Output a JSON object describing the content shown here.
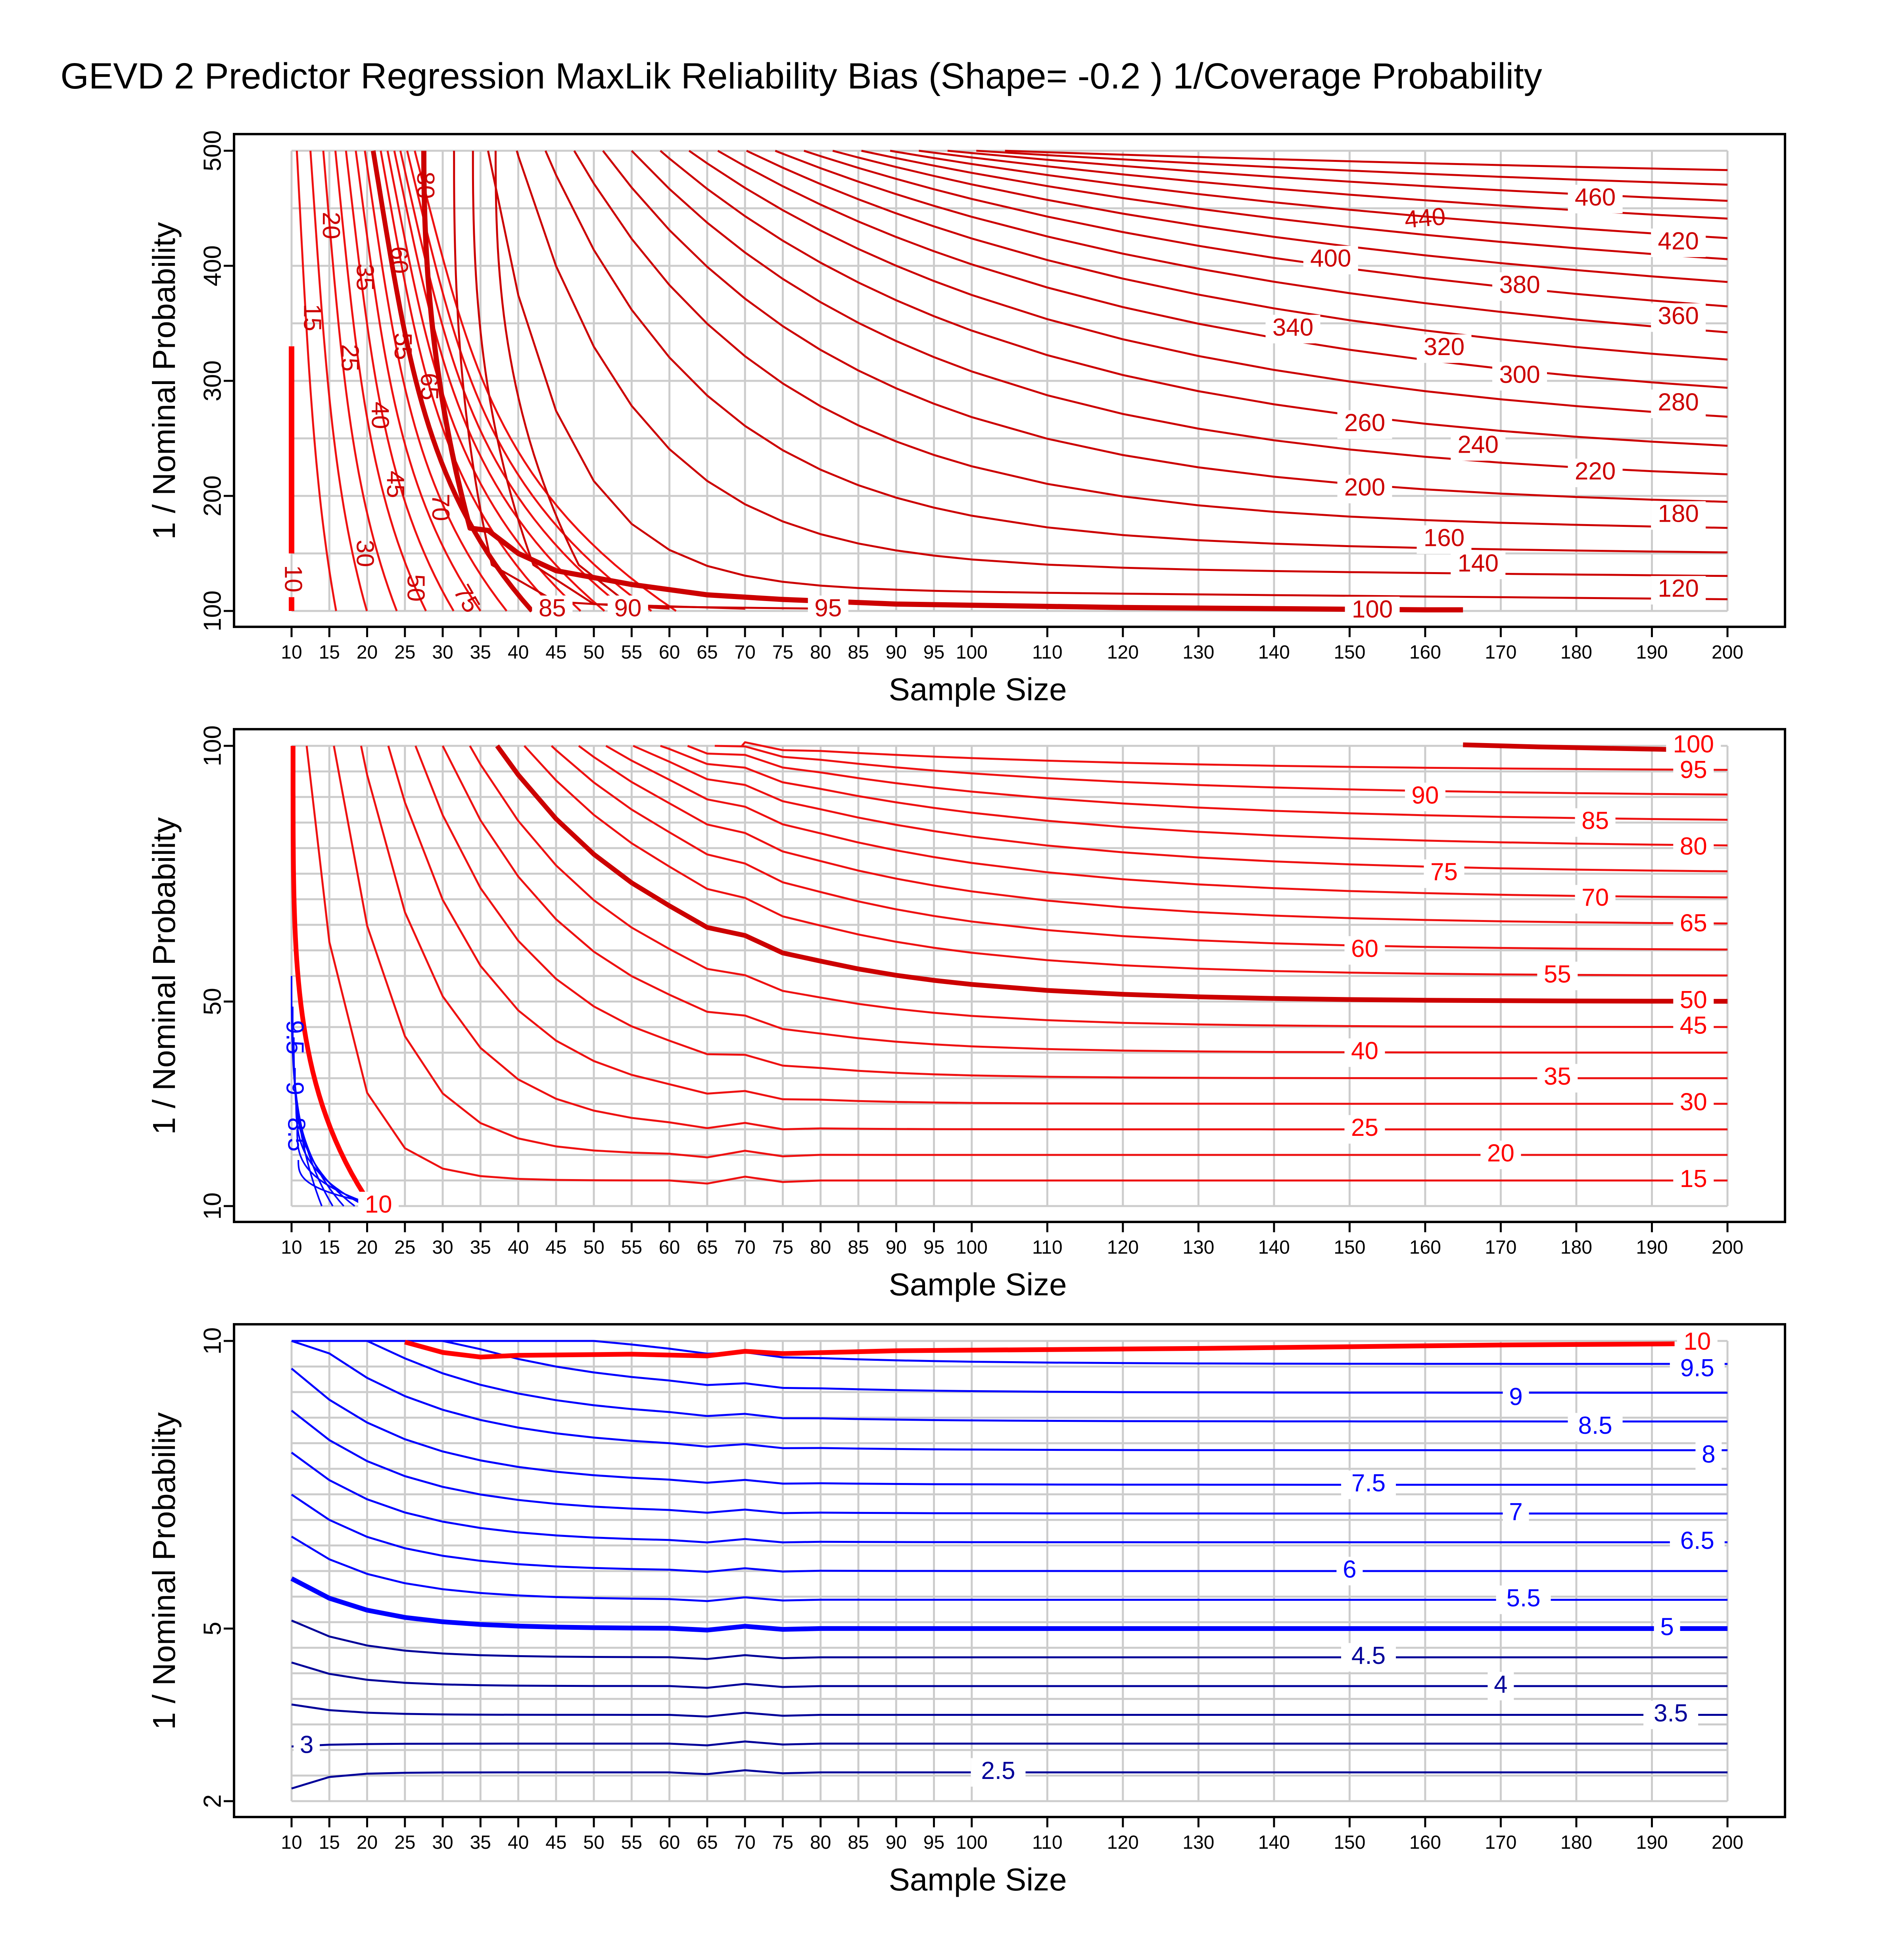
{
  "title": "GEVD 2 Predictor Regression MaxLik Reliability Bias (Shape= -0.2 ) 1/Coverage Probability",
  "colors": {
    "red_dark": "#cc0000",
    "red": "#ee1111",
    "red_bright": "#ff0000",
    "blue": "#0000ff",
    "blue_dark": "#000099",
    "grid": "#cccccc"
  },
  "chart_data": [
    {
      "type": "line",
      "title": "GEVD 2 Predictor Regression MaxLik Reliability Bias (Shape= -0.2 ) 1/Coverage Probability",
      "xlabel": "Sample Size",
      "ylabel": "1 / Nominal Probability",
      "xlim": [
        10,
        200
      ],
      "ylim": [
        100,
        500
      ],
      "xticks": [
        10,
        15,
        20,
        25,
        30,
        35,
        40,
        45,
        50,
        55,
        60,
        65,
        70,
        75,
        80,
        85,
        90,
        95,
        100,
        110,
        120,
        130,
        140,
        150,
        160,
        170,
        180,
        190,
        200
      ],
      "yticks": [
        100,
        200,
        300,
        400,
        500
      ],
      "x_tick_labels": [
        "10",
        "15",
        "20",
        "25",
        "30",
        "35",
        "40",
        "45",
        "50",
        "55",
        "60",
        "65",
        "70",
        "75",
        "80",
        "85",
        "90",
        "95",
        "100",
        "110",
        "120",
        "130",
        "140",
        "150",
        "160",
        "170",
        "180",
        "190",
        "200"
      ],
      "y_tick_labels": [
        "100",
        "200",
        "300",
        "400",
        "500"
      ],
      "grid": true,
      "contour_levels": [
        "10",
        "15",
        "20",
        "25",
        "30",
        "35",
        "40",
        "45",
        "50",
        "55",
        "60",
        "65",
        "70",
        "75",
        "80",
        "85",
        "90",
        "95",
        "100",
        "120",
        "140",
        "160",
        "180",
        "200",
        "220",
        "240",
        "260",
        "280",
        "300",
        "320",
        "340",
        "360",
        "380",
        "400",
        "420",
        "440",
        "460"
      ],
      "contour_labels": [
        {
          "text": "10",
          "x": 10,
          "y": 128,
          "rot": 90
        },
        {
          "text": "15",
          "x": 12.5,
          "y": 355,
          "rot": 90
        },
        {
          "text": "20",
          "x": 15,
          "y": 435,
          "rot": 90
        },
        {
          "text": "25",
          "x": 17.5,
          "y": 320,
          "rot": 90
        },
        {
          "text": "30",
          "x": 19.5,
          "y": 150,
          "rot": 90
        },
        {
          "text": "35",
          "x": 19.5,
          "y": 390,
          "rot": 90
        },
        {
          "text": "40",
          "x": 21.5,
          "y": 270,
          "rot": 90
        },
        {
          "text": "45",
          "x": 23.5,
          "y": 210,
          "rot": 90
        },
        {
          "text": "50",
          "x": 26.2,
          "y": 120,
          "rot": 90
        },
        {
          "text": "55",
          "x": 24.5,
          "y": 330,
          "rot": 90
        },
        {
          "text": "60",
          "x": 24,
          "y": 405,
          "rot": 90
        },
        {
          "text": "65",
          "x": 28,
          "y": 295,
          "rot": 90
        },
        {
          "text": "70",
          "x": 29.5,
          "y": 190,
          "rot": 90
        },
        {
          "text": "75",
          "x": 33,
          "y": 110,
          "rot": 60
        },
        {
          "text": "80",
          "x": 27.5,
          "y": 470,
          "rot": 90
        },
        {
          "text": "85",
          "x": 44.5,
          "y": 101,
          "rot": 0
        },
        {
          "text": "90",
          "x": 54.5,
          "y": 101,
          "rot": 0
        },
        {
          "text": "95",
          "x": 81,
          "y": 101,
          "rot": 0
        },
        {
          "text": "100",
          "x": 153,
          "y": 100,
          "rot": 0
        },
        {
          "text": "120",
          "x": 193.5,
          "y": 118,
          "rot": 0
        },
        {
          "text": "140",
          "x": 167,
          "y": 140,
          "rot": 0
        },
        {
          "text": "160",
          "x": 162.5,
          "y": 162,
          "rot": 0
        },
        {
          "text": "180",
          "x": 193.5,
          "y": 183,
          "rot": 0
        },
        {
          "text": "200",
          "x": 152,
          "y": 206,
          "rot": 0
        },
        {
          "text": "220",
          "x": 182.5,
          "y": 220,
          "rot": 0
        },
        {
          "text": "240",
          "x": 167,
          "y": 243,
          "rot": 0
        },
        {
          "text": "260",
          "x": 152,
          "y": 262,
          "rot": 0
        },
        {
          "text": "280",
          "x": 193.5,
          "y": 280,
          "rot": 0
        },
        {
          "text": "300",
          "x": 172.5,
          "y": 304,
          "rot": 0
        },
        {
          "text": "320",
          "x": 162.5,
          "y": 328,
          "rot": 0
        },
        {
          "text": "340",
          "x": 142.5,
          "y": 345,
          "rot": 0
        },
        {
          "text": "360",
          "x": 193.5,
          "y": 355,
          "rot": 0
        },
        {
          "text": "380",
          "x": 172.5,
          "y": 382,
          "rot": 0
        },
        {
          "text": "400",
          "x": 147.5,
          "y": 405,
          "rot": 0
        },
        {
          "text": "420",
          "x": 193.5,
          "y": 420,
          "rot": 0
        },
        {
          "text": "440",
          "x": 160,
          "y": 440,
          "rot": -5
        },
        {
          "text": "460",
          "x": 182.5,
          "y": 458,
          "rot": 0
        }
      ]
    },
    {
      "type": "line",
      "xlabel": "Sample Size",
      "ylabel": "1 / Nominal Probability",
      "xlim": [
        10,
        200
      ],
      "ylim": [
        10,
        100
      ],
      "xticks": [
        10,
        15,
        20,
        25,
        30,
        35,
        40,
        45,
        50,
        55,
        60,
        65,
        70,
        75,
        80,
        85,
        90,
        95,
        100,
        110,
        120,
        130,
        140,
        150,
        160,
        170,
        180,
        190,
        200
      ],
      "yticks": [
        10,
        50,
        100
      ],
      "x_tick_labels": [
        "10",
        "15",
        "20",
        "25",
        "30",
        "35",
        "40",
        "45",
        "50",
        "55",
        "60",
        "65",
        "70",
        "75",
        "80",
        "85",
        "90",
        "95",
        "100",
        "110",
        "120",
        "130",
        "140",
        "150",
        "160",
        "170",
        "180",
        "190",
        "200"
      ],
      "y_tick_labels": [
        "10",
        "50",
        "100"
      ],
      "grid": true,
      "contour_levels": [
        "8.5",
        "9",
        "9.5",
        "10",
        "15",
        "20",
        "25",
        "30",
        "35",
        "40",
        "45",
        "50",
        "55",
        "60",
        "65",
        "70",
        "75",
        "80",
        "85",
        "90",
        "95",
        "100"
      ],
      "contour_labels": [
        {
          "text": "9.5",
          "x": 10.2,
          "y": 43,
          "rot": 90,
          "color": "blue"
        },
        {
          "text": "9",
          "x": 10.2,
          "y": 33,
          "rot": 90,
          "color": "blue"
        },
        {
          "text": "8.5",
          "x": 10.4,
          "y": 24,
          "rot": 90,
          "color": "blue"
        },
        {
          "text": "10",
          "x": 21.5,
          "y": 10,
          "rot": 0
        },
        {
          "text": "15",
          "x": 195.5,
          "y": 15,
          "rot": 0
        },
        {
          "text": "20",
          "x": 170,
          "y": 20,
          "rot": 0
        },
        {
          "text": "25",
          "x": 152,
          "y": 25,
          "rot": 0
        },
        {
          "text": "30",
          "x": 195.5,
          "y": 30,
          "rot": 0
        },
        {
          "text": "35",
          "x": 177.5,
          "y": 35,
          "rot": 0
        },
        {
          "text": "40",
          "x": 152,
          "y": 40,
          "rot": 0
        },
        {
          "text": "45",
          "x": 195.5,
          "y": 45,
          "rot": 0
        },
        {
          "text": "50",
          "x": 195.5,
          "y": 50,
          "rot": 0
        },
        {
          "text": "55",
          "x": 177.5,
          "y": 55,
          "rot": 0
        },
        {
          "text": "60",
          "x": 152,
          "y": 60,
          "rot": 0
        },
        {
          "text": "65",
          "x": 195.5,
          "y": 65,
          "rot": 0
        },
        {
          "text": "70",
          "x": 182.5,
          "y": 70,
          "rot": 0
        },
        {
          "text": "75",
          "x": 162.5,
          "y": 75,
          "rot": 0
        },
        {
          "text": "80",
          "x": 195.5,
          "y": 80,
          "rot": 0
        },
        {
          "text": "85",
          "x": 182.5,
          "y": 85,
          "rot": 0
        },
        {
          "text": "90",
          "x": 160,
          "y": 90,
          "rot": 0
        },
        {
          "text": "95",
          "x": 195.5,
          "y": 95,
          "rot": 0
        },
        {
          "text": "100",
          "x": 195.5,
          "y": 100,
          "rot": 0
        }
      ]
    },
    {
      "type": "line",
      "xlabel": "Sample Size",
      "ylabel": "1 / Nominal Probability",
      "xlim": [
        10,
        200
      ],
      "ylim": [
        2,
        10
      ],
      "xticks": [
        10,
        15,
        20,
        25,
        30,
        35,
        40,
        45,
        50,
        55,
        60,
        65,
        70,
        75,
        80,
        85,
        90,
        95,
        100,
        110,
        120,
        130,
        140,
        150,
        160,
        170,
        180,
        190,
        200
      ],
      "yticks": [
        2,
        5,
        10
      ],
      "x_tick_labels": [
        "10",
        "15",
        "20",
        "25",
        "30",
        "35",
        "40",
        "45",
        "50",
        "55",
        "60",
        "65",
        "70",
        "75",
        "80",
        "85",
        "90",
        "95",
        "100",
        "110",
        "120",
        "130",
        "140",
        "150",
        "160",
        "170",
        "180",
        "190",
        "200"
      ],
      "y_tick_labels": [
        "2",
        "5",
        "10"
      ],
      "grid": true,
      "contour_levels": [
        "2.5",
        "3",
        "3.5",
        "4",
        "4.5",
        "5",
        "5.5",
        "6",
        "6.5",
        "7",
        "7.5",
        "8",
        "8.5",
        "9",
        "9.5",
        "10"
      ],
      "contour_labels": [
        {
          "text": "10",
          "x": 196,
          "y": 9.96,
          "rot": 0,
          "color": "red"
        },
        {
          "text": "9.5",
          "x": 196,
          "y": 9.5,
          "rot": 0
        },
        {
          "text": "9",
          "x": 172,
          "y": 9.0,
          "rot": 0
        },
        {
          "text": "8.5",
          "x": 182.5,
          "y": 8.5,
          "rot": 0
        },
        {
          "text": "8",
          "x": 197.5,
          "y": 8.0,
          "rot": 0
        },
        {
          "text": "7.5",
          "x": 152.5,
          "y": 7.5,
          "rot": 0
        },
        {
          "text": "7",
          "x": 172,
          "y": 7.0,
          "rot": 0
        },
        {
          "text": "6.5",
          "x": 196,
          "y": 6.5,
          "rot": 0
        },
        {
          "text": "6",
          "x": 150,
          "y": 6.0,
          "rot": 0
        },
        {
          "text": "5.5",
          "x": 173,
          "y": 5.5,
          "rot": 0
        },
        {
          "text": "5",
          "x": 192,
          "y": 5.0,
          "rot": 0
        },
        {
          "text": "4.5",
          "x": 152.5,
          "y": 4.5,
          "rot": 0
        },
        {
          "text": "4",
          "x": 170,
          "y": 4.0,
          "rot": 0
        },
        {
          "text": "3.5",
          "x": 192.5,
          "y": 3.5,
          "rot": 0
        },
        {
          "text": "3",
          "x": 12,
          "y": 2.95,
          "rot": 0
        },
        {
          "text": "2.5",
          "x": 103.5,
          "y": 2.5,
          "rot": 0
        }
      ]
    }
  ]
}
